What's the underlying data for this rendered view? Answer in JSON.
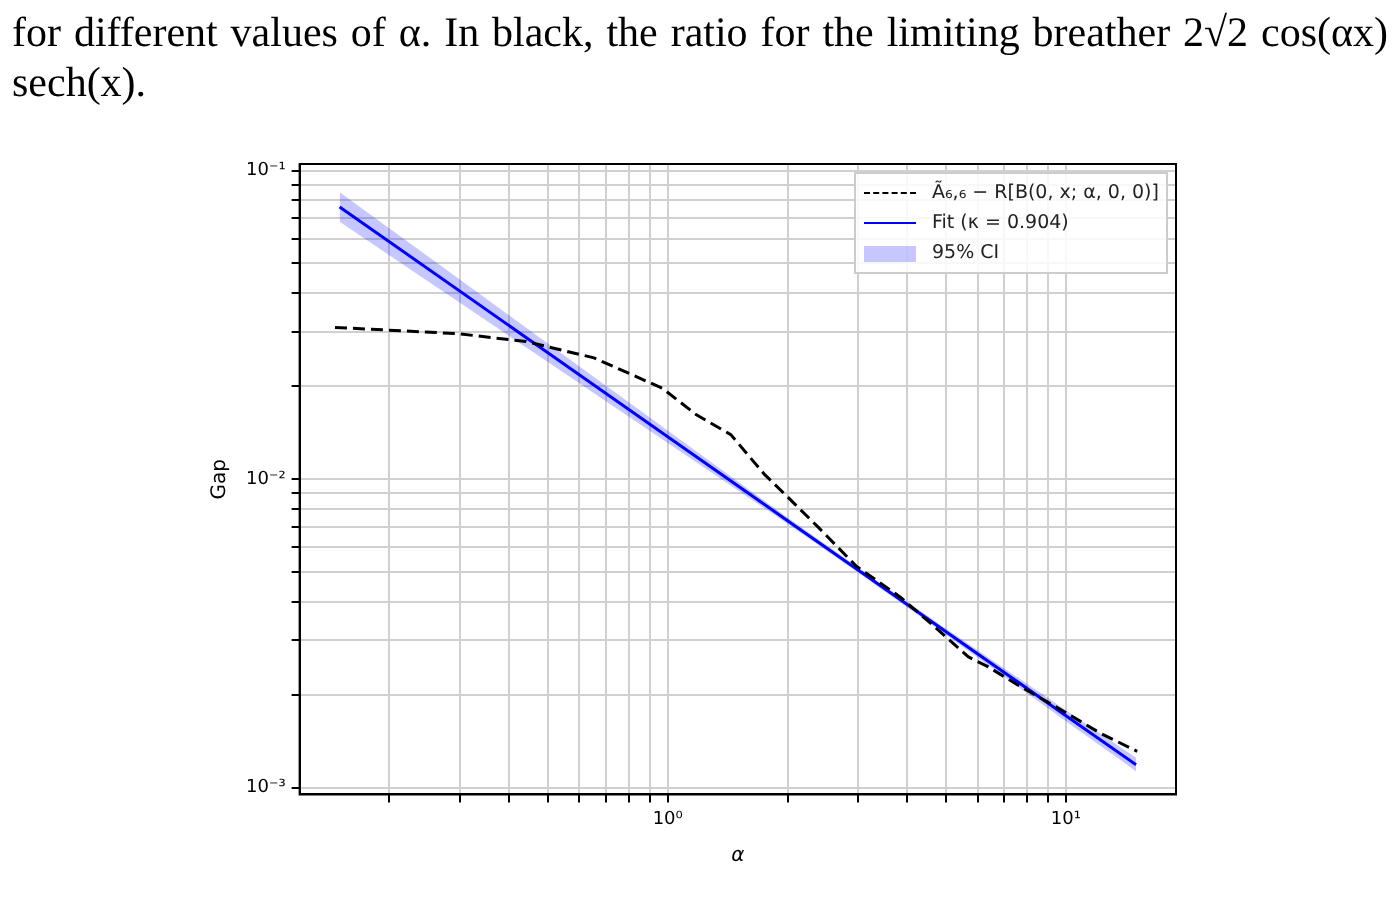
{
  "chart_data": {
    "type": "line",
    "xlabel": "α",
    "ylabel": "Gap",
    "annotations": [
      "for different values of α.  In black, the ratio for the limiting breather 2√2 cos(αx) sech(x).",
      "95% CI"
    ],
    "log": "xy",
    "grid": true,
    "legend": "top right",
    "marker": "none",
    "xlim": [
      0.119,
      18.9
    ],
    "xticks": [
      {
        "value": 0.2,
        "label": null
      },
      {
        "value": 0.3,
        "label": null
      },
      {
        "value": 0.4,
        "label": null
      },
      {
        "value": 0.5,
        "label": null
      },
      {
        "value": 0.6,
        "label": null
      },
      {
        "value": 0.7,
        "label": null
      },
      {
        "value": 0.8,
        "label": null
      },
      {
        "value": 0.9,
        "label": null
      },
      {
        "value": 1,
        "label": "10⁰"
      },
      {
        "value": 2,
        "label": null
      },
      {
        "value": 3,
        "label": null
      },
      {
        "value": 4,
        "label": null
      },
      {
        "value": 5,
        "label": null
      },
      {
        "value": 6,
        "label": null
      },
      {
        "value": 7,
        "label": null
      },
      {
        "value": 8,
        "label": null
      },
      {
        "value": 9,
        "label": null
      },
      {
        "value": 10,
        "label": "10¹"
      }
    ],
    "ylim": [
      0.00095,
      0.105
    ],
    "yticks": [
      {
        "value": 0.001,
        "label": "10⁻³"
      },
      {
        "value": 0.002,
        "label": null
      },
      {
        "value": 0.003,
        "label": null
      },
      {
        "value": 0.004,
        "label": null
      },
      {
        "value": 0.005,
        "label": null
      },
      {
        "value": 0.006,
        "label": null
      },
      {
        "value": 0.007,
        "label": null
      },
      {
        "value": 0.008,
        "label": null
      },
      {
        "value": 0.009,
        "label": null
      },
      {
        "value": 0.01,
        "label": "10⁻²"
      },
      {
        "value": 0.02,
        "label": null
      },
      {
        "value": 0.03,
        "label": null
      },
      {
        "value": 0.04,
        "label": null
      },
      {
        "value": 0.05,
        "label": null
      },
      {
        "value": 0.06,
        "label": null
      },
      {
        "value": 0.07,
        "label": null
      },
      {
        "value": 0.08,
        "label": null
      },
      {
        "value": 0.09,
        "label": null
      },
      {
        "value": 0.1,
        "label": "10⁻¹"
      }
    ],
    "series": [
      {
        "name": "Ã₆,₆ − R[B(0, x; α, 0, 0)]",
        "type": "line",
        "line_style": "dashed",
        "color": "#000000",
        "x": [
          0.146,
          0.297,
          0.441,
          0.653,
          0.969,
          1.18,
          1.44,
          1.75,
          1.97,
          2.39,
          2.97,
          3.84,
          4.68,
          5.69,
          6.35,
          7.57,
          9.84,
          12.2,
          15.1
        ],
        "values": [
          0.031,
          0.0296,
          0.0279,
          0.0247,
          0.0197,
          0.01615,
          0.01393,
          0.01035,
          0.00892,
          0.00697,
          0.00523,
          0.00414,
          0.00332,
          0.00265,
          0.00247,
          0.00215,
          0.00177,
          0.0015,
          0.00131
        ]
      },
      {
        "name": "Fit (κ = 0.904)",
        "type": "line",
        "line_style": "solid",
        "color": "#0000ff",
        "x": [
          0.15,
          0.5,
          1,
          2,
          3,
          5,
          10,
          15
        ],
        "values": [
          0.0762,
          0.02566,
          0.01371,
          0.00733,
          0.00508,
          0.0032,
          0.00171,
          0.001186
        ],
        "lower": [
          0.0682,
          0.02394,
          0.01309,
          0.00716,
          0.00499,
          0.00313,
          0.00164,
          0.00113
        ],
        "upper": [
          0.0851,
          0.0275,
          0.01436,
          0.0075,
          0.00518,
          0.00327,
          0.00178,
          0.00125
        ]
      }
    ]
  }
}
